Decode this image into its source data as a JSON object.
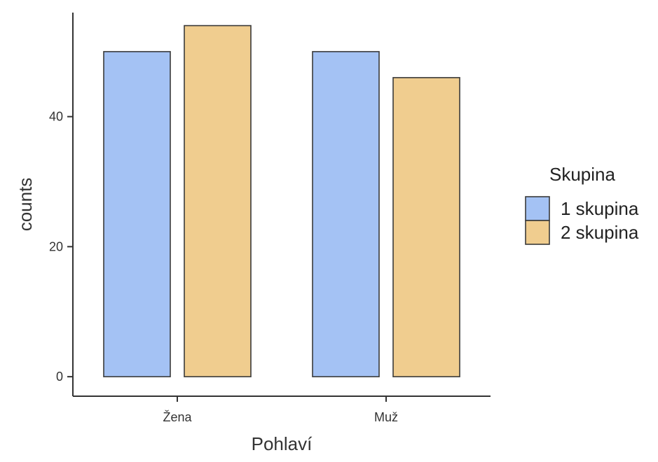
{
  "chart_data": {
    "type": "bar",
    "title": "",
    "xlabel": "Pohlaví",
    "ylabel": "counts",
    "categories": [
      "Žena",
      "Muž"
    ],
    "series": [
      {
        "name": "1 skupina",
        "values": [
          50,
          50
        ],
        "color": "#a4c2f4"
      },
      {
        "name": "2 skupina",
        "values": [
          54,
          46
        ],
        "color": "#f0cd8f"
      }
    ],
    "ylim": [
      -3,
      56
    ],
    "yticks": [
      0,
      20,
      40
    ],
    "grid": false,
    "legend": {
      "title": "Skupina",
      "position": "right"
    }
  }
}
